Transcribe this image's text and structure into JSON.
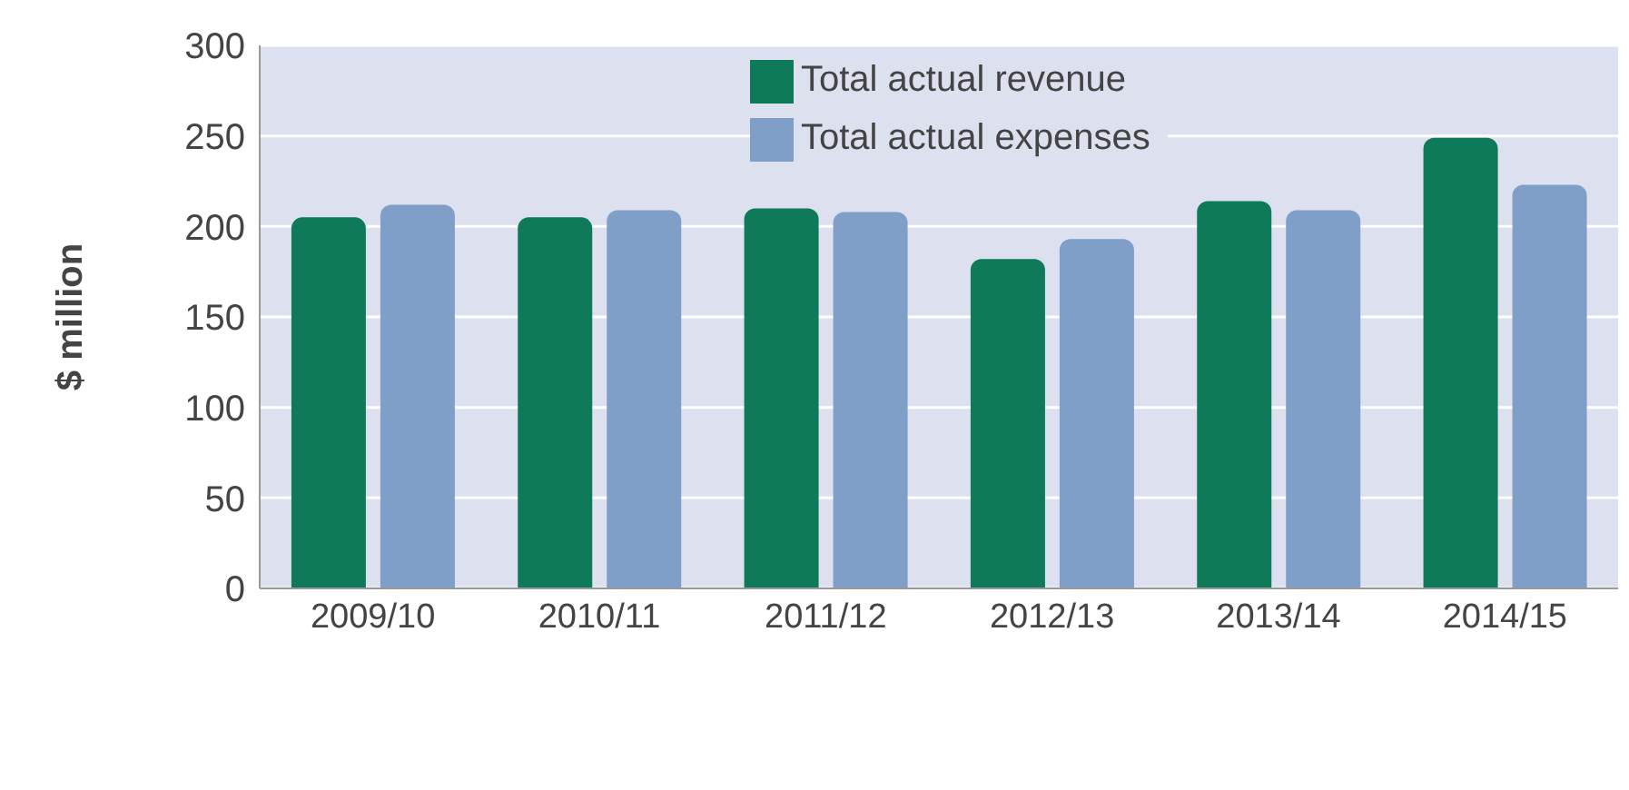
{
  "chart_data": {
    "type": "bar",
    "ylabel": "$ million",
    "categories": [
      "2009/10",
      "2010/11",
      "2011/12",
      "2012/13",
      "2013/14",
      "2014/15"
    ],
    "series": [
      {
        "name": "Total actual revenue",
        "color": "#0f7a5a",
        "values": [
          205,
          205,
          210,
          182,
          214,
          249
        ]
      },
      {
        "name": "Total actual expenses",
        "color": "#7f9fc8",
        "values": [
          212,
          209,
          208,
          193,
          209,
          223
        ]
      }
    ],
    "ylim": [
      0,
      300
    ],
    "yticks": [
      0,
      50,
      100,
      150,
      200,
      250,
      300
    ],
    "grid": "y",
    "legend": "top"
  }
}
